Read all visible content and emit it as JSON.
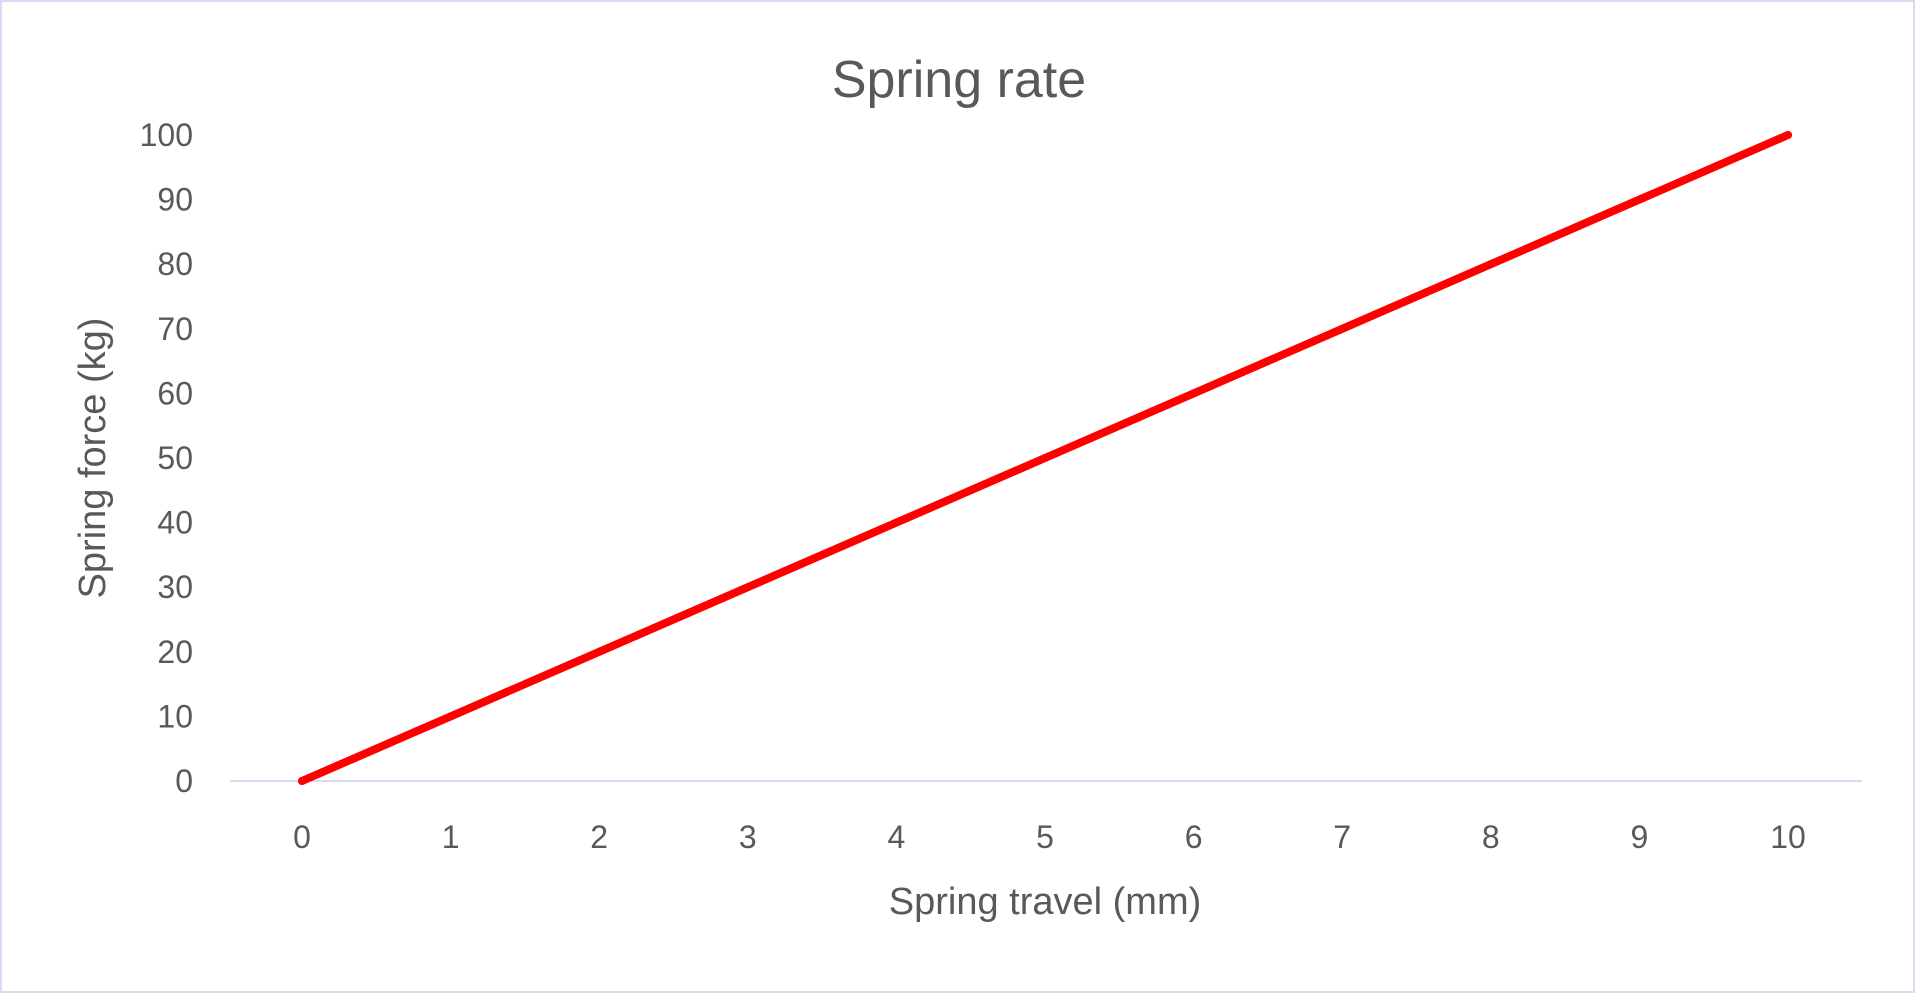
{
  "chart_data": {
    "type": "line",
    "title": "Spring rate",
    "xlabel": "Spring travel (mm)",
    "ylabel": "Spring force (kg)",
    "x": [
      0,
      1,
      2,
      3,
      4,
      5,
      6,
      7,
      8,
      9,
      10
    ],
    "series": [
      {
        "values": [
          0,
          10,
          20,
          30,
          40,
          50,
          60,
          70,
          80,
          90,
          100
        ],
        "color": "#ff0000"
      }
    ],
    "x_ticks": [
      "0",
      "1",
      "2",
      "3",
      "4",
      "5",
      "6",
      "7",
      "8",
      "9",
      "10"
    ],
    "y_ticks": [
      "0",
      "10",
      "20",
      "30",
      "40",
      "50",
      "60",
      "70",
      "80",
      "90",
      "100"
    ],
    "xlim": [
      0,
      10
    ],
    "ylim": [
      0,
      100
    ],
    "grid": false,
    "legend": "none",
    "colors": {
      "line": "#ff0000",
      "text": "#595959",
      "axis": "#d9d9f3",
      "frame": "#d9d9f3"
    }
  }
}
